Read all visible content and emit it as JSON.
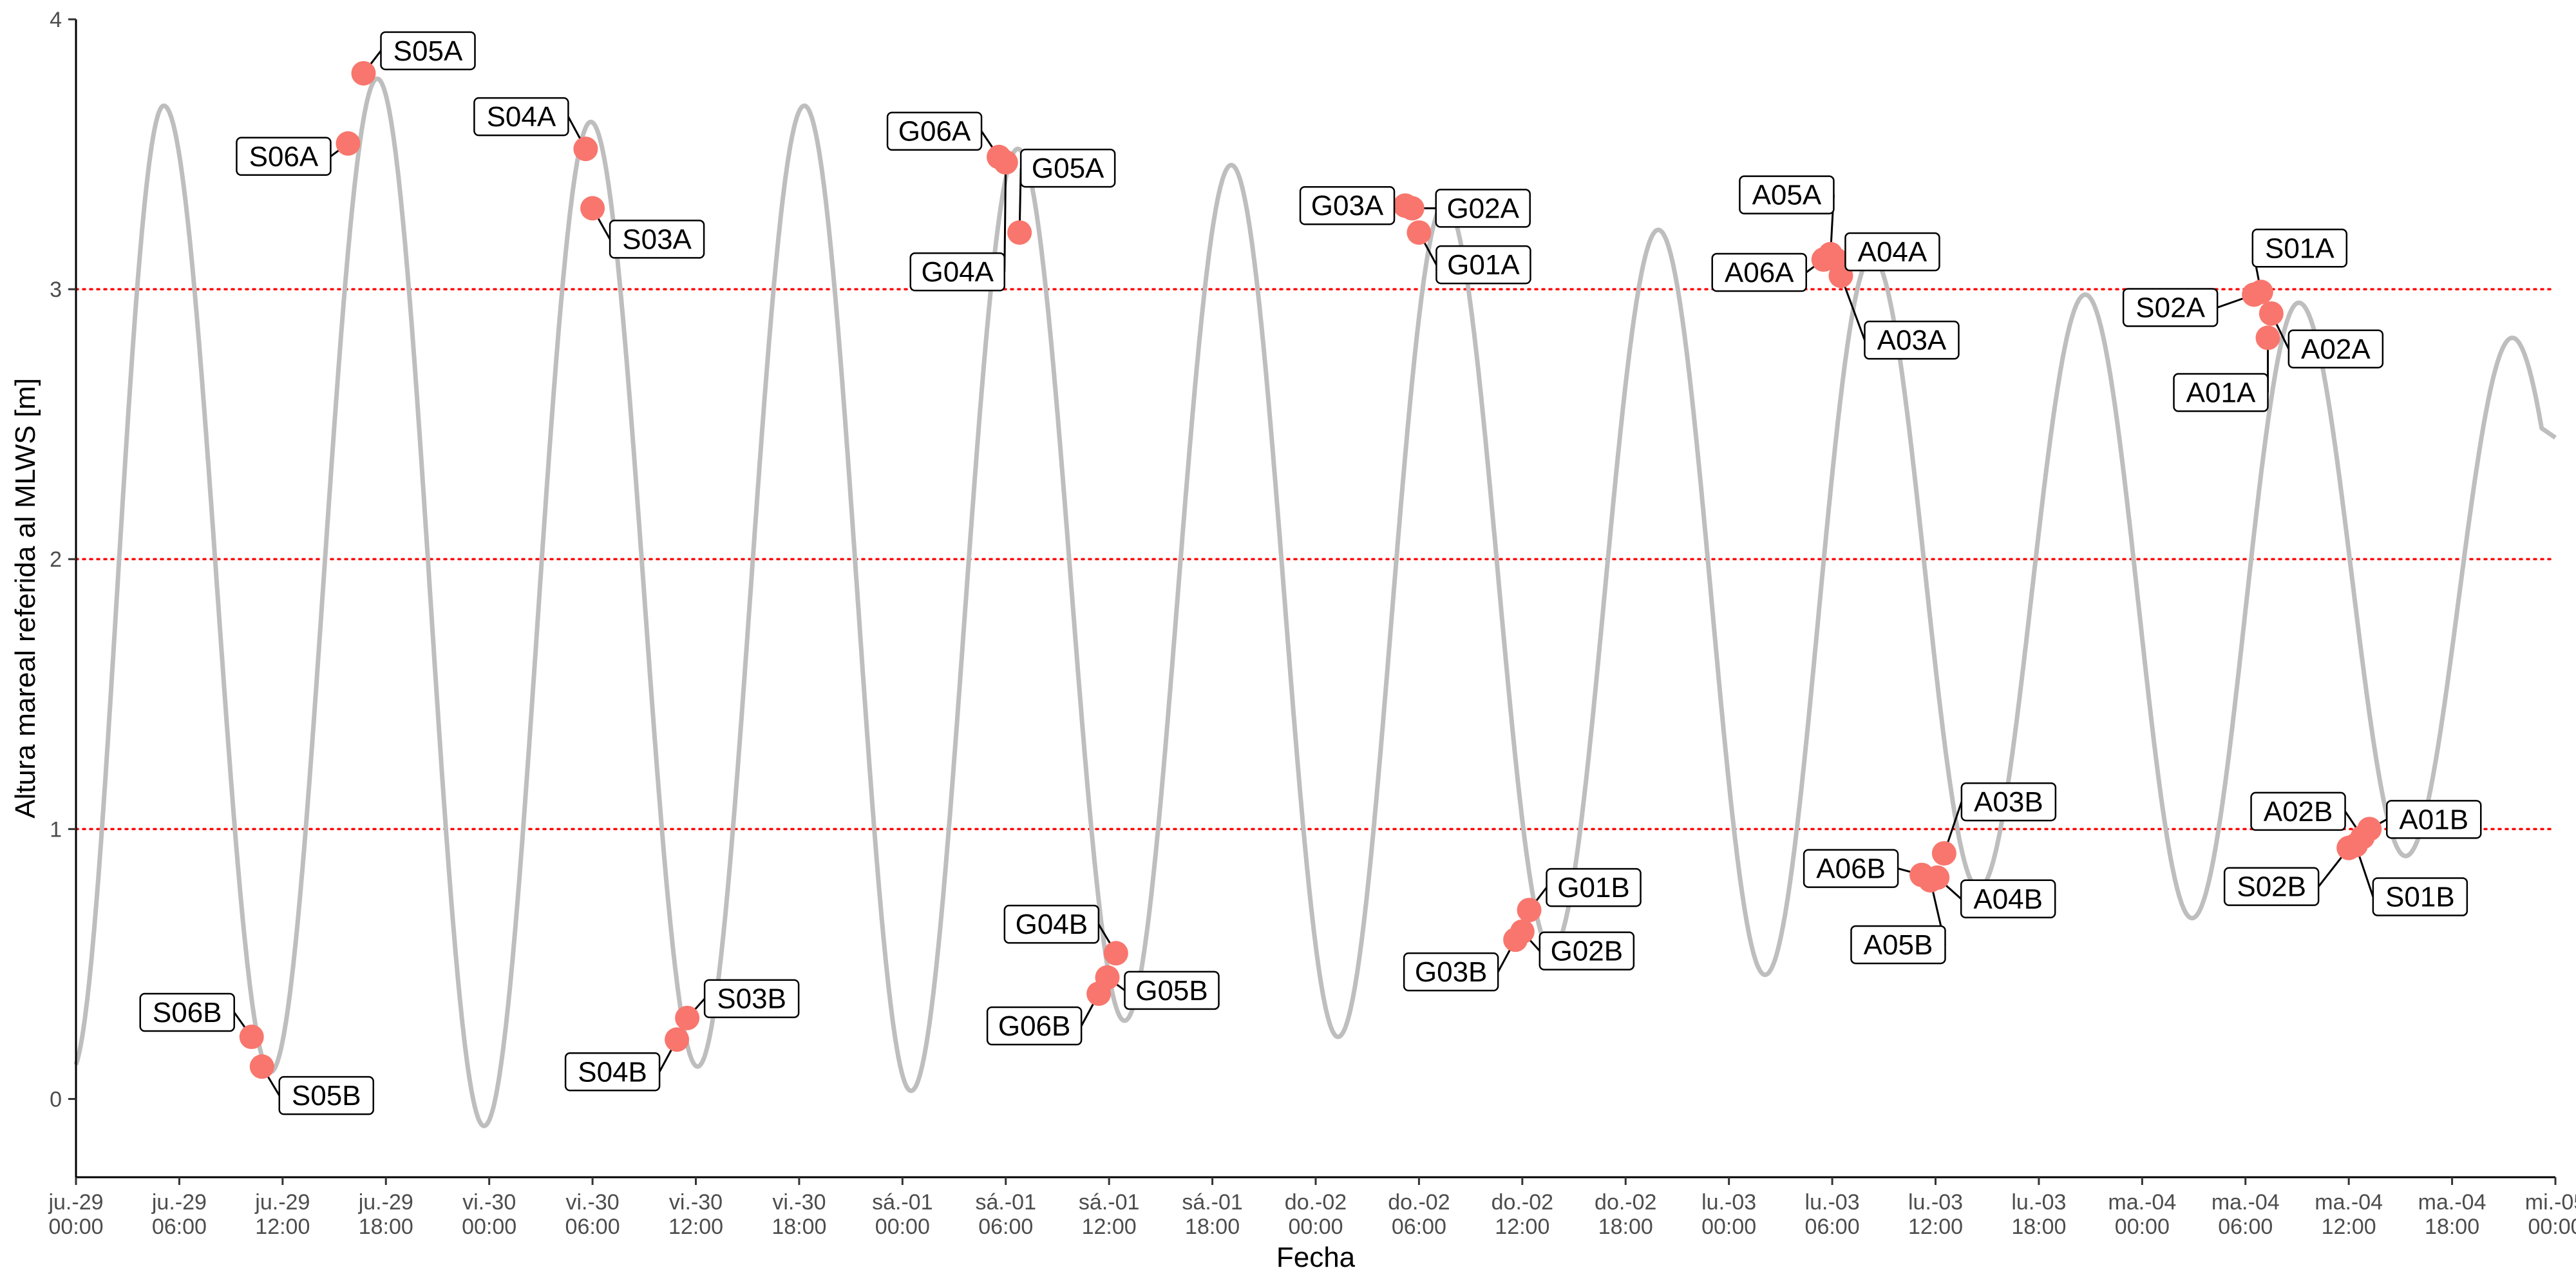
{
  "chart_data": {
    "type": "line",
    "xlabel": "Fecha",
    "ylabel": "Altura mareal referida al MLWS [m]",
    "ylim": [
      -0.29,
      4.0
    ],
    "xlim_hours": [
      0,
      144
    ],
    "grid": false,
    "y_ticks": [
      0,
      1,
      2,
      3,
      4
    ],
    "x_ticks": [
      {
        "h": 0,
        "day": "ju.-29",
        "time": "00:00"
      },
      {
        "h": 6,
        "day": "ju.-29",
        "time": "06:00"
      },
      {
        "h": 12,
        "day": "ju.-29",
        "time": "12:00"
      },
      {
        "h": 18,
        "day": "ju.-29",
        "time": "18:00"
      },
      {
        "h": 24,
        "day": "vi.-30",
        "time": "00:00"
      },
      {
        "h": 30,
        "day": "vi.-30",
        "time": "06:00"
      },
      {
        "h": 36,
        "day": "vi.-30",
        "time": "12:00"
      },
      {
        "h": 42,
        "day": "vi.-30",
        "time": "18:00"
      },
      {
        "h": 48,
        "day": "sá.-01",
        "time": "00:00"
      },
      {
        "h": 54,
        "day": "sá.-01",
        "time": "06:00"
      },
      {
        "h": 60,
        "day": "sá.-01",
        "time": "12:00"
      },
      {
        "h": 66,
        "day": "sá.-01",
        "time": "18:00"
      },
      {
        "h": 72,
        "day": "do.-02",
        "time": "00:00"
      },
      {
        "h": 78,
        "day": "do.-02",
        "time": "06:00"
      },
      {
        "h": 84,
        "day": "do.-02",
        "time": "12:00"
      },
      {
        "h": 90,
        "day": "do.-02",
        "time": "18:00"
      },
      {
        "h": 96,
        "day": "lu.-03",
        "time": "00:00"
      },
      {
        "h": 102,
        "day": "lu.-03",
        "time": "06:00"
      },
      {
        "h": 108,
        "day": "lu.-03",
        "time": "12:00"
      },
      {
        "h": 114,
        "day": "lu.-03",
        "time": "18:00"
      },
      {
        "h": 120,
        "day": "ma.-04",
        "time": "00:00"
      },
      {
        "h": 126,
        "day": "ma.-04",
        "time": "06:00"
      },
      {
        "h": 132,
        "day": "ma.-04",
        "time": "12:00"
      },
      {
        "h": 138,
        "day": "ma.-04",
        "time": "18:00"
      },
      {
        "h": 144,
        "day": "mi.-05",
        "time": "00:00"
      }
    ],
    "reference_lines": [
      1,
      2,
      3
    ],
    "tide_curve": {
      "color": "#bebebe",
      "extrema": [
        [
          -0.3,
          0.1
        ],
        [
          5.1,
          3.68
        ],
        [
          11.3,
          0.1
        ],
        [
          17.5,
          3.78
        ],
        [
          23.7,
          -0.1
        ],
        [
          29.9,
          3.62
        ],
        [
          36.1,
          0.12
        ],
        [
          42.3,
          3.68
        ],
        [
          48.5,
          0.03
        ],
        [
          54.7,
          3.52
        ],
        [
          60.9,
          0.29
        ],
        [
          67.1,
          3.46
        ],
        [
          73.3,
          0.23
        ],
        [
          79.5,
          3.32
        ],
        [
          85.7,
          0.55
        ],
        [
          91.9,
          3.22
        ],
        [
          98.1,
          0.46
        ],
        [
          104.3,
          3.12
        ],
        [
          110.5,
          0.78
        ],
        [
          116.7,
          2.98
        ],
        [
          122.9,
          0.67
        ],
        [
          129.1,
          2.95
        ],
        [
          135.3,
          0.9
        ],
        [
          141.5,
          2.82
        ],
        [
          147.7,
          0.9
        ]
      ],
      "end_y": 2.45
    },
    "points": {
      "color": "#f8766d",
      "items": [
        {
          "label": "S06B",
          "x": 10.2,
          "y": 0.23
        },
        {
          "label": "S05B",
          "x": 10.8,
          "y": 0.12
        },
        {
          "label": "S06A",
          "x": 15.8,
          "y": 3.54
        },
        {
          "label": "S05A",
          "x": 16.7,
          "y": 3.8
        },
        {
          "label": "S04A",
          "x": 29.6,
          "y": 3.52
        },
        {
          "label": "S03A",
          "x": 30.0,
          "y": 3.3
        },
        {
          "label": "S04B",
          "x": 34.9,
          "y": 0.22
        },
        {
          "label": "S03B",
          "x": 35.5,
          "y": 0.3
        },
        {
          "label": "G06A",
          "x": 53.6,
          "y": 3.49
        },
        {
          "label": "G04A",
          "x": 54.0,
          "y": 3.47
        },
        {
          "label": "G05A",
          "x": 54.8,
          "y": 3.21
        },
        {
          "label": "G06B",
          "x": 59.4,
          "y": 0.39
        },
        {
          "label": "G05B",
          "x": 59.9,
          "y": 0.45
        },
        {
          "label": "G04B",
          "x": 60.4,
          "y": 0.54
        },
        {
          "label": "G03A",
          "x": 77.2,
          "y": 3.31
        },
        {
          "label": "G02A",
          "x": 77.6,
          "y": 3.3
        },
        {
          "label": "G01A",
          "x": 78.0,
          "y": 3.21
        },
        {
          "label": "G03B",
          "x": 83.6,
          "y": 0.59
        },
        {
          "label": "G02B",
          "x": 84.0,
          "y": 0.62
        },
        {
          "label": "G01B",
          "x": 84.4,
          "y": 0.7
        },
        {
          "label": "A06A",
          "x": 101.5,
          "y": 3.11
        },
        {
          "label": "A05A",
          "x": 101.9,
          "y": 3.13
        },
        {
          "label": "A04A",
          "x": 102.2,
          "y": 3.11
        },
        {
          "label": "A03A",
          "x": 102.5,
          "y": 3.05
        },
        {
          "label": "A06B",
          "x": 107.2,
          "y": 0.83
        },
        {
          "label": "A05B",
          "x": 107.7,
          "y": 0.81
        },
        {
          "label": "A04B",
          "x": 108.1,
          "y": 0.82
        },
        {
          "label": "A03B",
          "x": 108.5,
          "y": 0.91
        },
        {
          "label": "S02A",
          "x": 126.5,
          "y": 2.98
        },
        {
          "label": "S01A",
          "x": 126.9,
          "y": 2.99
        },
        {
          "label": "A02A",
          "x": 127.5,
          "y": 2.91
        },
        {
          "label": "A01A",
          "x": 127.3,
          "y": 2.82
        },
        {
          "label": "S02B",
          "x": 132.0,
          "y": 0.93
        },
        {
          "label": "S01B",
          "x": 132.4,
          "y": 0.94
        },
        {
          "label": "A02B",
          "x": 132.8,
          "y": 0.97
        },
        {
          "label": "A01B",
          "x": 133.2,
          "y": 1.0
        }
      ]
    }
  }
}
